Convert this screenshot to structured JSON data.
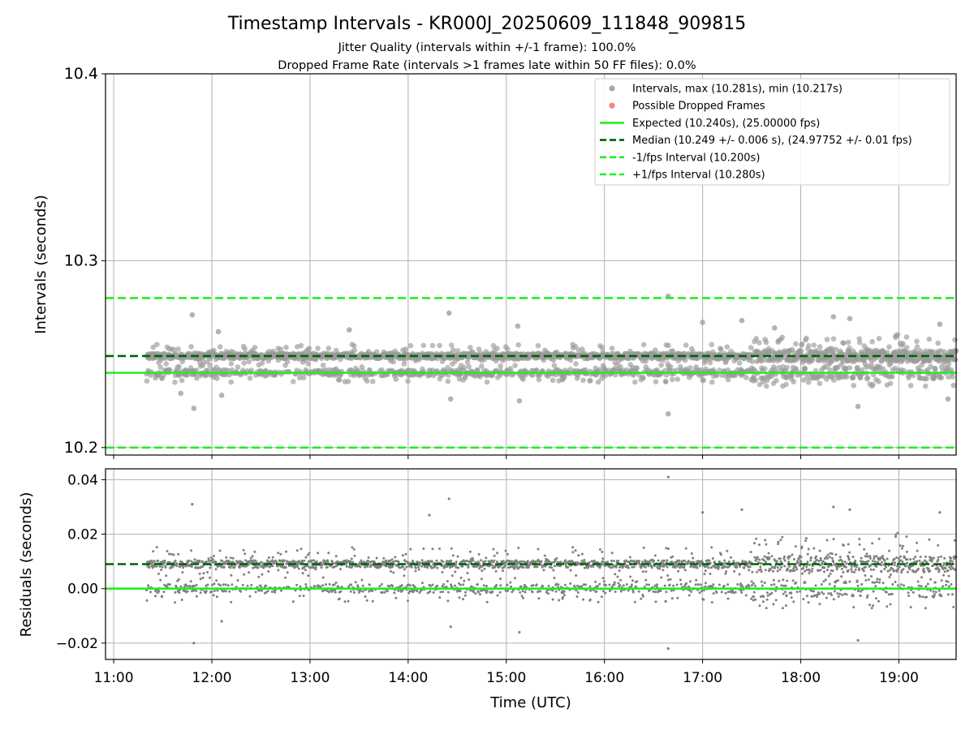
{
  "figure": {
    "title": "Timestamp Intervals - KR000J_20250609_111848_909815",
    "subtitle_lines": [
      "Jitter Quality (intervals within +/-1 frame): 100.0%",
      "Dropped Frame Rate (intervals >1 frames late within 50 FF files): 0.0%"
    ]
  },
  "chart_data": [
    {
      "type": "scatter",
      "ylabel": "Intervals (seconds)",
      "xlim": [
        "10:55",
        "19:35"
      ],
      "ylim": [
        10.196,
        10.4
      ],
      "yticks": [
        "10.2",
        "10.3",
        "10.4"
      ],
      "ytick_values": [
        10.2,
        10.3,
        10.4
      ],
      "x_range_of_data": [
        "11:20",
        "19:35"
      ],
      "grid": true,
      "legend_position": "top-right",
      "legend": [
        {
          "label": "Intervals, max (10.281s), min (10.217s)",
          "kind": "marker",
          "color": "#999999"
        },
        {
          "label": "Possible Dropped Frames",
          "kind": "marker",
          "color": "#f07070"
        },
        {
          "label": "Expected (10.240s), (25.00000 fps)",
          "kind": "line",
          "color": "#22ee22"
        },
        {
          "label": "Median (10.249 +/- 0.006 s), (24.97752 +/- 0.01 fps)",
          "kind": "dashed",
          "color": "#006400"
        },
        {
          "label": "-1/fps Interval (10.200s)",
          "kind": "dashed",
          "color": "#22ee22"
        },
        {
          "label": "+1/fps Interval (10.280s)",
          "kind": "dashed",
          "color": "#22ee22"
        }
      ],
      "reference_lines": [
        {
          "name": "Expected",
          "y": 10.24,
          "style": "solid",
          "color": "#22ee22"
        },
        {
          "name": "Median",
          "y": 10.249,
          "style": "dashed",
          "color": "#006400"
        },
        {
          "name": "-1/fps Interval",
          "y": 10.2,
          "style": "dashed",
          "color": "#22ee22"
        },
        {
          "name": "+1/fps Interval",
          "y": 10.28,
          "style": "dashed",
          "color": "#22ee22"
        }
      ],
      "points": [
        [
          "11:49",
          10.221
        ],
        [
          "11:48",
          10.271
        ],
        [
          "11:41",
          10.229
        ],
        [
          "12:04",
          10.262
        ],
        [
          "12:06",
          10.228
        ],
        [
          "14:26",
          10.226
        ],
        [
          "14:25",
          10.272
        ],
        [
          "15:07",
          10.265
        ],
        [
          "15:08",
          10.225
        ],
        [
          "16:39",
          10.281
        ],
        [
          "16:39",
          10.218
        ],
        [
          "17:00",
          10.267
        ],
        [
          "18:20",
          10.27
        ],
        [
          "18:30",
          10.269
        ],
        [
          "18:35",
          10.222
        ],
        [
          "19:25",
          10.266
        ],
        [
          "19:30",
          10.226
        ],
        [
          "17:24",
          10.268
        ],
        [
          "13:24",
          10.263
        ],
        [
          "17:44",
          10.264
        ]
      ],
      "point_color": "#999999"
    },
    {
      "type": "scatter",
      "xlabel": "Time (UTC)",
      "ylabel": "Residuals (seconds)",
      "xlim": [
        "10:55",
        "19:35"
      ],
      "ylim": [
        -0.026,
        0.044
      ],
      "xticks": [
        "11:00",
        "12:00",
        "13:00",
        "14:00",
        "15:00",
        "16:00",
        "17:00",
        "18:00",
        "19:00"
      ],
      "yticks": [
        "−0.02",
        "0.00",
        "0.02",
        "0.04"
      ],
      "ytick_values": [
        -0.02,
        0.0,
        0.02,
        0.04
      ],
      "grid": true,
      "reference_lines": [
        {
          "name": "Expected",
          "y": 0.0,
          "style": "solid",
          "color": "#22ee22"
        },
        {
          "name": "Median",
          "y": 0.009,
          "style": "dashed",
          "color": "#006400"
        }
      ],
      "points": [
        [
          "11:49",
          -0.02
        ],
        [
          "11:48",
          0.031
        ],
        [
          "14:25",
          0.033
        ],
        [
          "16:39",
          0.041
        ],
        [
          "16:39",
          -0.022
        ],
        [
          "14:26",
          -0.014
        ],
        [
          "15:08",
          -0.016
        ],
        [
          "18:35",
          -0.019
        ],
        [
          "18:20",
          0.03
        ],
        [
          "18:30",
          0.029
        ],
        [
          "17:00",
          0.028
        ],
        [
          "12:06",
          -0.012
        ],
        [
          "19:25",
          0.028
        ],
        [
          "17:24",
          0.029
        ],
        [
          "14:13",
          0.027
        ]
      ],
      "point_color": "#808080"
    }
  ]
}
